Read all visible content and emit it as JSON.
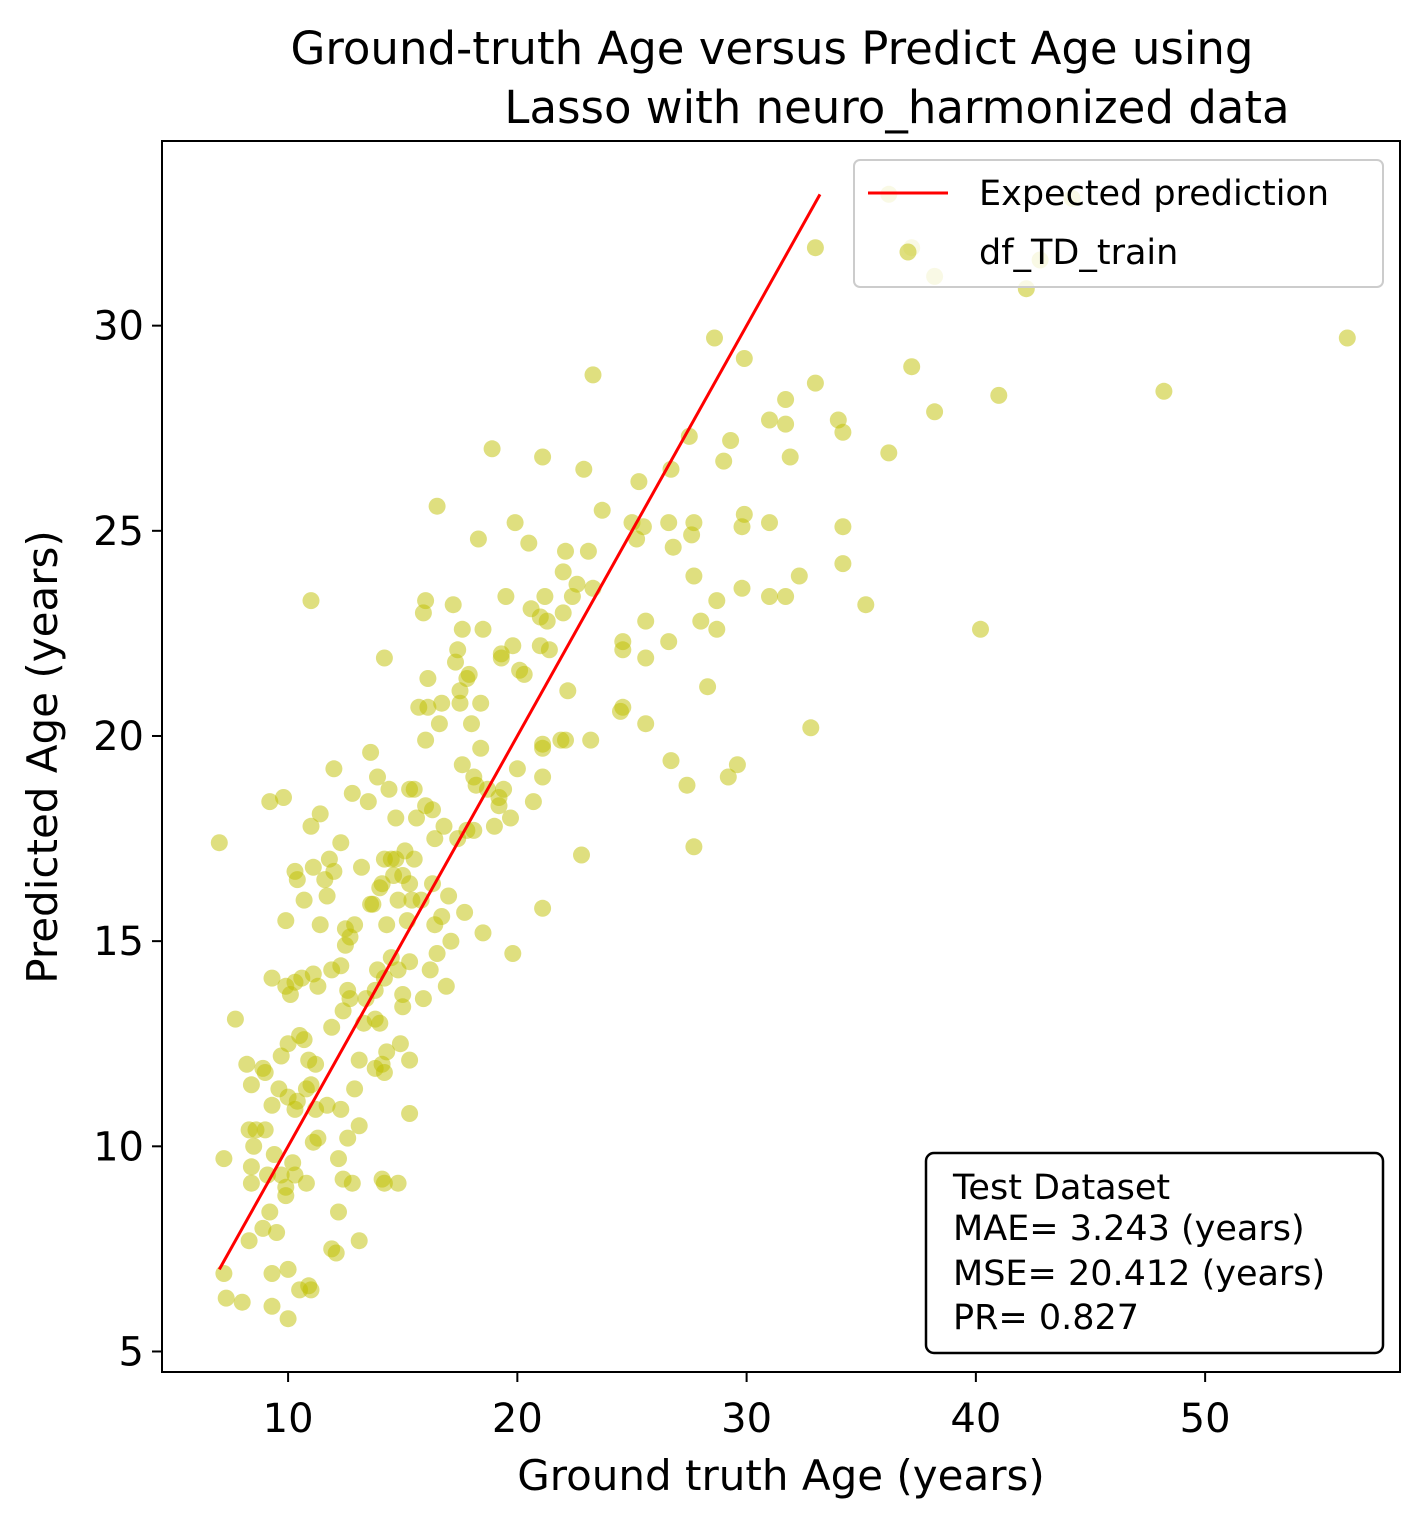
{
  "colors": {
    "line": "#ff0000",
    "points": "#bfbf00",
    "frame": "#000000",
    "legend_border": "#cccccc"
  },
  "chart_data": {
    "type": "scatter",
    "title": [
      "Ground-truth Age versus Predict Age using",
      "Lasso  with neuro_harmonized data"
    ],
    "xlabel": "Ground truth Age (years)",
    "ylabel": "Predicted Age (years)",
    "xlim": [
      4.5,
      58.5
    ],
    "ylim": [
      4.5,
      34.5
    ],
    "xticks": [
      10,
      20,
      30,
      40,
      50
    ],
    "yticks": [
      5,
      10,
      15,
      20,
      25,
      30
    ],
    "grid": false,
    "legend_position": "top-right",
    "legend": {
      "line_label": "Expected prediction",
      "scatter_label": "df_TD_train"
    },
    "stats_box": {
      "position": "bottom-right",
      "lines": [
        "Test Dataset",
        "MAE= 3.243 (years)",
        "MSE= 20.412 (years)",
        "PR= 0.827"
      ]
    },
    "line": {
      "name": "Expected prediction",
      "x": [
        7.0,
        33.2
      ],
      "y": [
        7.0,
        33.2
      ]
    },
    "series": [
      {
        "name": "df_TD_train",
        "points": [
          [
            7.0,
            17.4
          ],
          [
            7.2,
            9.7
          ],
          [
            7.2,
            6.9
          ],
          [
            7.3,
            6.3
          ],
          [
            7.7,
            13.1
          ],
          [
            8.0,
            6.2
          ],
          [
            8.2,
            12.0
          ],
          [
            8.3,
            7.7
          ],
          [
            8.3,
            10.4
          ],
          [
            8.4,
            9.5
          ],
          [
            8.4,
            11.5
          ],
          [
            8.4,
            9.1
          ],
          [
            8.6,
            10.4
          ],
          [
            8.5,
            10.0
          ],
          [
            8.9,
            11.9
          ],
          [
            8.9,
            8.0
          ],
          [
            9.0,
            11.8
          ],
          [
            9.0,
            10.4
          ],
          [
            9.1,
            9.3
          ],
          [
            9.2,
            8.4
          ],
          [
            9.2,
            18.4
          ],
          [
            9.3,
            14.1
          ],
          [
            9.3,
            11.0
          ],
          [
            9.3,
            6.1
          ],
          [
            9.3,
            6.9
          ],
          [
            9.4,
            9.8
          ],
          [
            9.5,
            7.9
          ],
          [
            9.6,
            11.4
          ],
          [
            9.7,
            12.2
          ],
          [
            9.7,
            9.3
          ],
          [
            9.8,
            18.5
          ],
          [
            9.9,
            15.5
          ],
          [
            9.9,
            13.9
          ],
          [
            9.9,
            9.0
          ],
          [
            9.9,
            8.8
          ],
          [
            10.0,
            11.2
          ],
          [
            10.0,
            7.0
          ],
          [
            10.0,
            5.8
          ],
          [
            10.0,
            12.5
          ],
          [
            10.1,
            13.7
          ],
          [
            10.2,
            9.6
          ],
          [
            10.3,
            16.7
          ],
          [
            10.3,
            14.0
          ],
          [
            10.3,
            10.9
          ],
          [
            10.3,
            9.3
          ],
          [
            10.4,
            16.5
          ],
          [
            10.4,
            11.1
          ],
          [
            10.5,
            12.7
          ],
          [
            10.5,
            6.5
          ],
          [
            10.6,
            14.1
          ],
          [
            10.7,
            16.0
          ],
          [
            10.7,
            12.6
          ],
          [
            10.8,
            11.4
          ],
          [
            10.8,
            9.1
          ],
          [
            10.9,
            12.1
          ],
          [
            10.9,
            6.6
          ],
          [
            11.0,
            23.3
          ],
          [
            11.0,
            17.8
          ],
          [
            11.0,
            11.5
          ],
          [
            11.0,
            6.5
          ],
          [
            11.1,
            16.8
          ],
          [
            11.1,
            14.2
          ],
          [
            11.1,
            10.1
          ],
          [
            11.2,
            12.0
          ],
          [
            11.2,
            10.9
          ],
          [
            11.3,
            13.9
          ],
          [
            11.3,
            10.2
          ],
          [
            11.4,
            18.1
          ],
          [
            11.4,
            15.4
          ],
          [
            11.6,
            16.5
          ],
          [
            11.7,
            11.0
          ],
          [
            11.7,
            16.1
          ],
          [
            11.8,
            17.0
          ],
          [
            11.9,
            14.3
          ],
          [
            11.9,
            12.9
          ],
          [
            11.9,
            7.5
          ],
          [
            12.0,
            19.2
          ],
          [
            12.0,
            16.7
          ],
          [
            12.1,
            7.4
          ],
          [
            12.2,
            8.4
          ],
          [
            12.2,
            9.7
          ],
          [
            12.3,
            17.4
          ],
          [
            12.3,
            14.4
          ],
          [
            12.3,
            10.9
          ],
          [
            12.4,
            13.3
          ],
          [
            12.4,
            9.2
          ],
          [
            12.5,
            15.3
          ],
          [
            12.5,
            14.9
          ],
          [
            12.6,
            10.2
          ],
          [
            12.6,
            13.8
          ],
          [
            12.7,
            15.1
          ],
          [
            12.7,
            13.6
          ],
          [
            12.8,
            9.1
          ],
          [
            12.8,
            18.6
          ],
          [
            12.9,
            15.4
          ],
          [
            12.9,
            11.4
          ],
          [
            13.1,
            12.1
          ],
          [
            13.1,
            10.5
          ],
          [
            13.1,
            7.7
          ],
          [
            13.2,
            16.8
          ],
          [
            13.3,
            13.0
          ],
          [
            13.4,
            13.6
          ],
          [
            13.5,
            18.4
          ],
          [
            13.6,
            15.9
          ],
          [
            13.6,
            19.6
          ],
          [
            13.7,
            15.9
          ],
          [
            13.8,
            13.1
          ],
          [
            13.8,
            11.9
          ],
          [
            13.8,
            13.8
          ],
          [
            13.9,
            19.0
          ],
          [
            13.9,
            14.3
          ],
          [
            14.0,
            16.3
          ],
          [
            14.0,
            13.0
          ],
          [
            14.1,
            12.0
          ],
          [
            14.1,
            9.2
          ],
          [
            14.1,
            16.4
          ],
          [
            14.2,
            17.0
          ],
          [
            14.2,
            21.9
          ],
          [
            14.2,
            14.1
          ],
          [
            14.2,
            11.8
          ],
          [
            14.2,
            9.1
          ],
          [
            14.3,
            15.4
          ],
          [
            14.3,
            12.3
          ],
          [
            14.4,
            18.7
          ],
          [
            14.5,
            17.0
          ],
          [
            14.5,
            14.6
          ],
          [
            14.6,
            16.6
          ],
          [
            14.7,
            17.0
          ],
          [
            14.7,
            18.0
          ],
          [
            14.8,
            16.0
          ],
          [
            14.8,
            14.3
          ],
          [
            14.8,
            9.1
          ],
          [
            14.9,
            12.5
          ],
          [
            15.0,
            13.4
          ],
          [
            15.0,
            13.7
          ],
          [
            15.0,
            16.6
          ],
          [
            15.1,
            17.2
          ],
          [
            15.2,
            15.5
          ],
          [
            15.3,
            18.7
          ],
          [
            15.3,
            16.4
          ],
          [
            15.3,
            14.5
          ],
          [
            15.3,
            12.1
          ],
          [
            15.3,
            10.8
          ],
          [
            15.4,
            16.0
          ],
          [
            15.5,
            18.7
          ],
          [
            15.5,
            17.0
          ],
          [
            15.6,
            18.0
          ],
          [
            15.7,
            20.7
          ],
          [
            15.8,
            16.0
          ],
          [
            15.9,
            23.0
          ],
          [
            15.9,
            13.6
          ],
          [
            16.0,
            23.3
          ],
          [
            16.0,
            19.9
          ],
          [
            16.0,
            18.3
          ],
          [
            16.1,
            21.4
          ],
          [
            16.1,
            20.7
          ],
          [
            16.2,
            14.3
          ],
          [
            16.3,
            18.2
          ],
          [
            16.3,
            16.4
          ],
          [
            16.4,
            17.5
          ],
          [
            16.4,
            15.4
          ],
          [
            16.5,
            25.6
          ],
          [
            16.5,
            14.7
          ],
          [
            16.6,
            20.3
          ],
          [
            16.7,
            20.8
          ],
          [
            16.7,
            15.6
          ],
          [
            16.8,
            17.8
          ],
          [
            16.9,
            13.9
          ],
          [
            17.0,
            16.1
          ],
          [
            17.1,
            15.0
          ],
          [
            17.2,
            23.2
          ],
          [
            17.3,
            21.8
          ],
          [
            17.4,
            22.1
          ],
          [
            17.4,
            17.5
          ],
          [
            17.5,
            20.8
          ],
          [
            17.5,
            21.1
          ],
          [
            17.6,
            22.6
          ],
          [
            17.6,
            19.3
          ],
          [
            17.7,
            15.7
          ],
          [
            17.8,
            21.4
          ],
          [
            17.8,
            17.7
          ],
          [
            17.9,
            21.5
          ],
          [
            18.0,
            20.3
          ],
          [
            18.1,
            19.0
          ],
          [
            18.1,
            17.7
          ],
          [
            18.2,
            18.8
          ],
          [
            18.3,
            24.8
          ],
          [
            18.4,
            20.8
          ],
          [
            18.4,
            19.7
          ],
          [
            18.5,
            22.6
          ],
          [
            18.5,
            15.2
          ],
          [
            18.7,
            18.7
          ],
          [
            18.9,
            27.0
          ],
          [
            19.0,
            17.8
          ],
          [
            19.2,
            18.3
          ],
          [
            19.2,
            18.5
          ],
          [
            19.3,
            21.9
          ],
          [
            19.3,
            22.0
          ],
          [
            19.4,
            18.7
          ],
          [
            19.5,
            23.4
          ],
          [
            19.7,
            18.0
          ],
          [
            19.8,
            22.2
          ],
          [
            19.8,
            14.7
          ],
          [
            19.9,
            25.2
          ],
          [
            20.0,
            19.2
          ],
          [
            20.1,
            21.6
          ],
          [
            20.3,
            21.5
          ],
          [
            20.5,
            24.7
          ],
          [
            20.6,
            23.1
          ],
          [
            20.7,
            18.4
          ],
          [
            21.0,
            22.9
          ],
          [
            21.0,
            22.2
          ],
          [
            21.1,
            26.8
          ],
          [
            21.1,
            19.8
          ],
          [
            21.1,
            19.7
          ],
          [
            21.1,
            19.0
          ],
          [
            21.1,
            15.8
          ],
          [
            21.2,
            23.4
          ],
          [
            21.3,
            22.8
          ],
          [
            21.4,
            22.1
          ],
          [
            21.9,
            19.9
          ],
          [
            22.0,
            24.0
          ],
          [
            22.0,
            23.0
          ],
          [
            22.1,
            24.5
          ],
          [
            22.1,
            19.9
          ],
          [
            22.2,
            21.1
          ],
          [
            22.4,
            23.4
          ],
          [
            22.6,
            23.7
          ],
          [
            22.8,
            17.1
          ],
          [
            22.9,
            26.5
          ],
          [
            23.1,
            24.5
          ],
          [
            23.2,
            19.9
          ],
          [
            23.3,
            28.8
          ],
          [
            23.3,
            23.6
          ],
          [
            23.7,
            25.5
          ],
          [
            24.5,
            20.6
          ],
          [
            24.6,
            20.7
          ],
          [
            24.6,
            22.1
          ],
          [
            24.6,
            22.3
          ],
          [
            25.0,
            25.2
          ],
          [
            25.2,
            24.8
          ],
          [
            25.3,
            26.2
          ],
          [
            25.5,
            25.1
          ],
          [
            25.6,
            22.8
          ],
          [
            25.6,
            21.9
          ],
          [
            25.6,
            20.3
          ],
          [
            26.6,
            25.2
          ],
          [
            26.6,
            22.3
          ],
          [
            26.7,
            19.4
          ],
          [
            26.7,
            26.5
          ],
          [
            26.8,
            24.6
          ],
          [
            27.4,
            18.8
          ],
          [
            27.5,
            27.3
          ],
          [
            27.6,
            24.9
          ],
          [
            27.7,
            17.3
          ],
          [
            27.7,
            23.9
          ],
          [
            27.7,
            25.2
          ],
          [
            28.0,
            22.8
          ],
          [
            28.3,
            21.2
          ],
          [
            28.6,
            29.7
          ],
          [
            28.7,
            22.6
          ],
          [
            28.7,
            23.3
          ],
          [
            29.0,
            26.7
          ],
          [
            29.2,
            19.0
          ],
          [
            29.3,
            27.2
          ],
          [
            29.6,
            19.3
          ],
          [
            29.8,
            23.6
          ],
          [
            29.8,
            25.1
          ],
          [
            29.9,
            29.2
          ],
          [
            29.9,
            25.4
          ],
          [
            31.0,
            27.7
          ],
          [
            31.0,
            25.2
          ],
          [
            31.0,
            23.4
          ],
          [
            31.7,
            28.2
          ],
          [
            31.7,
            27.6
          ],
          [
            31.7,
            23.4
          ],
          [
            31.9,
            26.8
          ],
          [
            32.3,
            23.9
          ],
          [
            32.8,
            20.2
          ],
          [
            33.0,
            28.6
          ],
          [
            33.0,
            31.9
          ],
          [
            34.0,
            27.7
          ],
          [
            34.2,
            27.4
          ],
          [
            34.2,
            25.1
          ],
          [
            34.2,
            24.2
          ],
          [
            35.2,
            23.2
          ],
          [
            36.2,
            33.2
          ],
          [
            36.2,
            26.9
          ],
          [
            37.2,
            31.9
          ],
          [
            37.2,
            29.0
          ],
          [
            38.2,
            27.9
          ],
          [
            38.2,
            31.2
          ],
          [
            40.2,
            22.6
          ],
          [
            41.0,
            28.3
          ],
          [
            42.2,
            30.9
          ],
          [
            42.8,
            31.6
          ],
          [
            44.2,
            33.1
          ],
          [
            48.2,
            28.4
          ],
          [
            56.2,
            29.7
          ]
        ]
      }
    ]
  }
}
